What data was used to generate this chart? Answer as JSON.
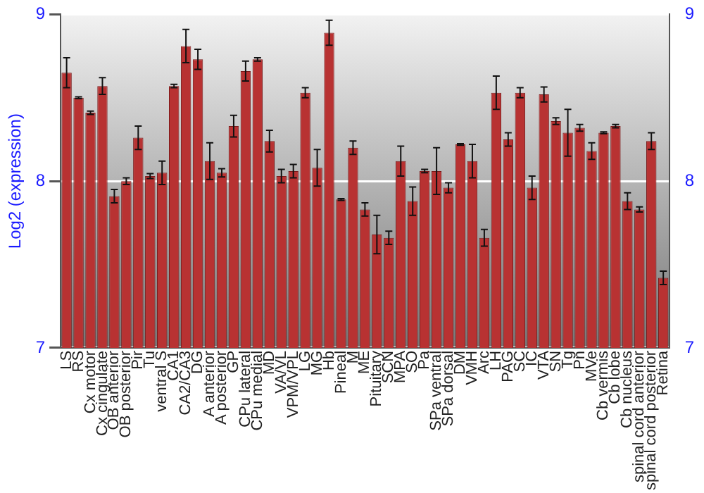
{
  "chart_data": {
    "type": "bar",
    "ylabel": "Log2 (expression)",
    "categories": [
      "LS",
      "RS",
      "Cx motor",
      "Cx cingulate",
      "OB anterior",
      "OB posterior",
      "Pir",
      "Tu",
      "ventral S",
      "CA1",
      "CA2/CA3",
      "DG",
      "A anterior",
      "A posterior",
      "GP",
      "CPu lateral",
      "CPu medial",
      "MD",
      "VA/VL",
      "VPM/VPL",
      "LG",
      "MG",
      "Hb",
      "Pineal",
      "M",
      "ME",
      "Pituitary",
      "SCN",
      "MPA",
      "SO",
      "Pa",
      "SPa ventral",
      "SPa dorsal",
      "DM",
      "VMH",
      "Arc",
      "LH",
      "PAG",
      "SC",
      "IC",
      "VTA",
      "SN",
      "Tg",
      "Pn",
      "MVe",
      "Cb vermis",
      "Cb lobe",
      "Cb nucleus",
      "spinal cord anterior",
      "spinal cord posterior",
      "Retina"
    ],
    "values": [
      8.65,
      8.5,
      8.41,
      8.57,
      7.91,
      8.0,
      8.26,
      8.03,
      8.05,
      8.57,
      8.81,
      8.73,
      8.12,
      8.05,
      8.33,
      8.66,
      8.73,
      8.24,
      8.03,
      8.06,
      8.53,
      8.08,
      8.89,
      7.89,
      8.2,
      7.83,
      7.68,
      7.66,
      8.12,
      7.88,
      8.06,
      8.06,
      7.96,
      8.22,
      8.12,
      7.66,
      8.53,
      8.25,
      8.53,
      7.96,
      8.52,
      8.36,
      8.29,
      8.32,
      8.18,
      8.29,
      8.33,
      7.88,
      7.83,
      8.24,
      7.42
    ],
    "errors": [
      0.09,
      0.005,
      0.01,
      0.05,
      0.04,
      0.02,
      0.07,
      0.015,
      0.07,
      0.01,
      0.1,
      0.06,
      0.11,
      0.025,
      0.065,
      0.06,
      0.01,
      0.065,
      0.04,
      0.04,
      0.03,
      0.11,
      0.075,
      0.005,
      0.04,
      0.04,
      0.115,
      0.04,
      0.09,
      0.085,
      0.01,
      0.14,
      0.03,
      0.005,
      0.1,
      0.05,
      0.1,
      0.04,
      0.03,
      0.07,
      0.045,
      0.02,
      0.14,
      0.02,
      0.05,
      0.005,
      0.01,
      0.05,
      0.015,
      0.05,
      0.04
    ],
    "color": "#b83232",
    "ylim": [
      7,
      9
    ],
    "yticks": [
      7,
      8,
      9
    ],
    "y2lim": [
      7,
      9
    ],
    "y2ticks": [
      7,
      8,
      9
    ],
    "grid": "y"
  }
}
